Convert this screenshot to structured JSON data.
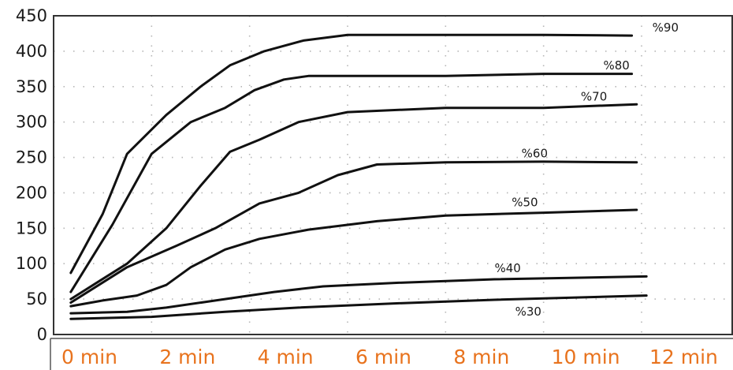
{
  "chart_data": {
    "type": "line",
    "title": "",
    "xlabel": "",
    "ylabel": "",
    "ylim": [
      0,
      450
    ],
    "xlim": [
      0,
      13.85
    ],
    "yticks": [
      0,
      50,
      100,
      150,
      200,
      250,
      300,
      350,
      400,
      450
    ],
    "xticks": [
      {
        "value": 0,
        "label": "0 min"
      },
      {
        "value": 2,
        "label": "2 min"
      },
      {
        "value": 4,
        "label": "4 min"
      },
      {
        "value": 6,
        "label": "6 min"
      },
      {
        "value": 8,
        "label": "8 min"
      },
      {
        "value": 10,
        "label": "10 min"
      },
      {
        "value": 12,
        "label": "12 min"
      }
    ],
    "grid": true,
    "legend": "none",
    "series": [
      {
        "name": "%90",
        "points": [
          [
            0.35,
            87
          ],
          [
            1.0,
            170
          ],
          [
            1.5,
            255
          ],
          [
            2.3,
            310
          ],
          [
            3.0,
            350
          ],
          [
            3.6,
            380
          ],
          [
            4.3,
            400
          ],
          [
            5.1,
            415
          ],
          [
            6.0,
            423
          ],
          [
            8.0,
            423
          ],
          [
            10.0,
            423
          ],
          [
            11.8,
            422
          ]
        ]
      },
      {
        "name": "%80",
        "points": [
          [
            0.35,
            60
          ],
          [
            1.2,
            155
          ],
          [
            2.0,
            255
          ],
          [
            2.8,
            300
          ],
          [
            3.5,
            320
          ],
          [
            4.1,
            345
          ],
          [
            4.7,
            360
          ],
          [
            5.2,
            365
          ],
          [
            8.0,
            365
          ],
          [
            10.0,
            368
          ],
          [
            11.8,
            368
          ]
        ]
      },
      {
        "name": "%70",
        "points": [
          [
            0.35,
            50
          ],
          [
            1.5,
            100
          ],
          [
            2.3,
            150
          ],
          [
            3.0,
            210
          ],
          [
            3.6,
            258
          ],
          [
            4.2,
            275
          ],
          [
            5.0,
            300
          ],
          [
            6.0,
            314
          ],
          [
            8.0,
            320
          ],
          [
            10.0,
            320
          ],
          [
            11.9,
            325
          ]
        ]
      },
      {
        "name": "%60",
        "points": [
          [
            0.35,
            45
          ],
          [
            1.5,
            95
          ],
          [
            2.5,
            125
          ],
          [
            3.3,
            150
          ],
          [
            4.2,
            185
          ],
          [
            5.0,
            200
          ],
          [
            5.8,
            225
          ],
          [
            6.6,
            240
          ],
          [
            8.0,
            243
          ],
          [
            10.0,
            244
          ],
          [
            11.9,
            243
          ]
        ]
      },
      {
        "name": "%50",
        "points": [
          [
            0.35,
            40
          ],
          [
            1.0,
            48
          ],
          [
            1.7,
            55
          ],
          [
            2.3,
            70
          ],
          [
            2.8,
            95
          ],
          [
            3.5,
            120
          ],
          [
            4.2,
            135
          ],
          [
            5.2,
            148
          ],
          [
            6.6,
            160
          ],
          [
            8.0,
            168
          ],
          [
            10.0,
            172
          ],
          [
            11.9,
            176
          ]
        ]
      },
      {
        "name": "%40",
        "points": [
          [
            0.35,
            30
          ],
          [
            1.5,
            32
          ],
          [
            2.3,
            38
          ],
          [
            3.5,
            50
          ],
          [
            4.5,
            60
          ],
          [
            5.5,
            68
          ],
          [
            7.0,
            73
          ],
          [
            9.0,
            78
          ],
          [
            12.1,
            82
          ]
        ]
      },
      {
        "name": "%30",
        "points": [
          [
            0.35,
            22
          ],
          [
            2.0,
            25
          ],
          [
            3.5,
            32
          ],
          [
            5.0,
            38
          ],
          [
            7.0,
            44
          ],
          [
            9.0,
            49
          ],
          [
            12.1,
            55
          ]
        ]
      }
    ],
    "labels": [
      {
        "series": "%90",
        "text": "%90",
        "x": 12.22,
        "y": 428
      },
      {
        "series": "%80",
        "text": "%80",
        "x": 11.22,
        "y": 374
      },
      {
        "series": "%70",
        "text": "%70",
        "x": 10.76,
        "y": 330
      },
      {
        "series": "%60",
        "text": "%60",
        "x": 9.55,
        "y": 250
      },
      {
        "series": "%50",
        "text": "%50",
        "x": 9.35,
        "y": 181
      },
      {
        "series": "%40",
        "text": "%40",
        "x": 9.0,
        "y": 88
      },
      {
        "series": "%30",
        "text": "%30",
        "x": 9.42,
        "y": 27
      }
    ]
  }
}
